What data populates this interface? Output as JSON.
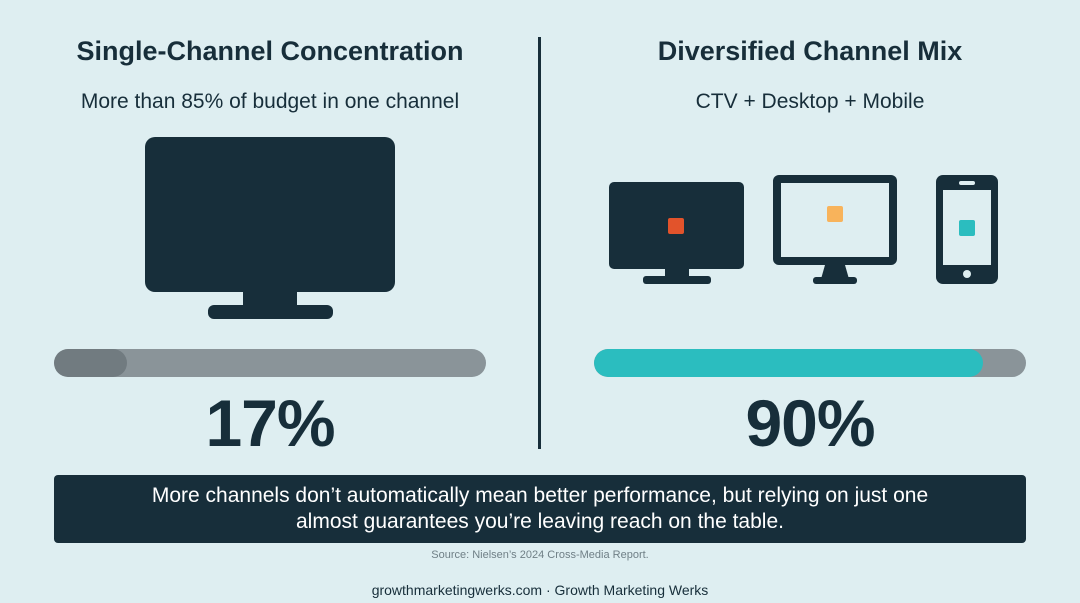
{
  "left": {
    "title": "Single-Channel Concentration",
    "subtitle": "More than 85% of budget in one channel",
    "percent_label": "17%",
    "bar_fill_fraction": 0.17,
    "bar_color": "#717b80",
    "icon": "tv-icon"
  },
  "right": {
    "title": "Diversified Channel Mix",
    "subtitle": "CTV + Desktop + Mobile",
    "percent_label": "90%",
    "bar_fill_fraction": 0.9,
    "bar_color": "#2bbdbf",
    "icons": [
      {
        "name": "ctv-icon",
        "accent": "#e2532b"
      },
      {
        "name": "desktop-monitor-icon",
        "accent": "#f8b35b"
      },
      {
        "name": "smartphone-icon",
        "accent": "#2bbdbf"
      }
    ]
  },
  "callout": {
    "line1": "More channels don’t automatically mean better performance, but relying on just one",
    "line2": "almost guarantees you’re leaving reach on the table."
  },
  "source": "Source: Nielsen’s 2024 Cross-Media Report.",
  "footer": "growthmarketingwerks.com · Growth Marketing Werks",
  "colors": {
    "background": "#deeef1",
    "dark": "#172e3a",
    "track": "#8a9499"
  }
}
